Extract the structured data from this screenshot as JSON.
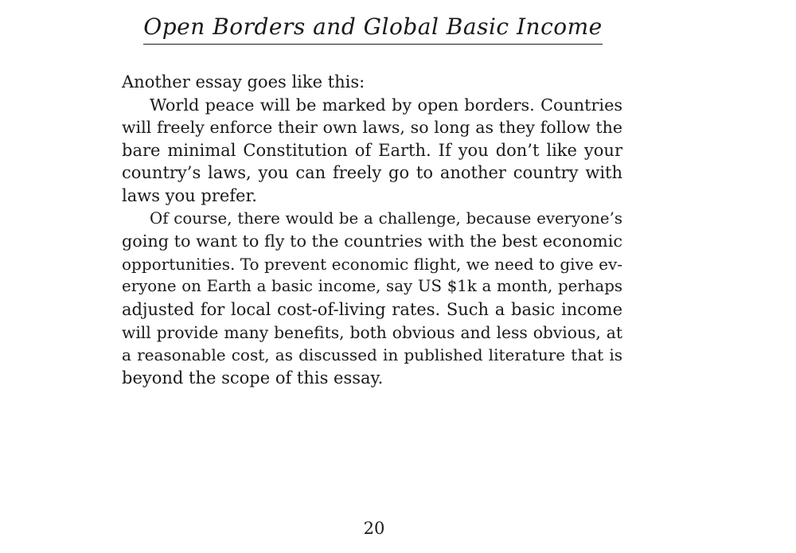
{
  "header": {
    "title": "Open Borders and Global Basic Income"
  },
  "body": {
    "intro": "Another essay goes like this:",
    "paragraph_1_lines": [
      "World peace will be marked by open borders. Countries",
      "will freely enforce their own laws, so long as they follow the",
      "bare minimal Constitution of Earth. If you don’t like your",
      "country’s laws, you can freely go to another country with",
      "laws you prefer."
    ],
    "paragraph_2_lines": [
      "Of course, there would be a challenge, because everyone’s",
      "going to want to fly to the countries with the best economic",
      "opportunities. To prevent economic flight, we need to give ev-",
      "eryone on Earth a basic income, say US $1k a month, perhaps",
      "adjusted for local cost-of-living rates. Such a basic income",
      "will provide many benefits, both obvious and less obvious, at",
      "a reasonable cost, as discussed in published literature that is",
      "beyond the scope of this essay."
    ]
  },
  "footer": {
    "page_number": "20"
  }
}
